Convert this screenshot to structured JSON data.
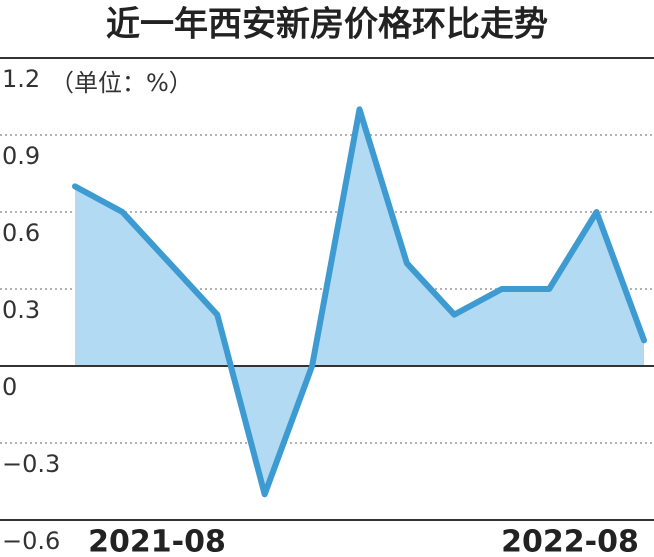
{
  "chart_data": {
    "type": "area",
    "title": "近一年西安新房价格环比走势",
    "y_label": "（单位：%）",
    "categories": [
      "2021-08",
      null,
      null,
      null,
      null,
      null,
      null,
      null,
      null,
      null,
      null,
      null,
      "2022-08"
    ],
    "values": [
      0.7,
      0.6,
      0.4,
      0.2,
      -0.5,
      0,
      1.0,
      0.4,
      0.2,
      0.3,
      0.3,
      0.6,
      0.1
    ],
    "color": "#3d9bd1",
    "fill_color": "#b3daf3",
    "ylim": [
      -0.6,
      1.2
    ],
    "yticks": [
      {
        "value": -0.6,
        "label": "−0.6"
      },
      {
        "value": -0.3,
        "label": "−0.3"
      },
      0,
      0.3,
      0.6,
      0.9,
      1.2
    ],
    "grid": true
  }
}
